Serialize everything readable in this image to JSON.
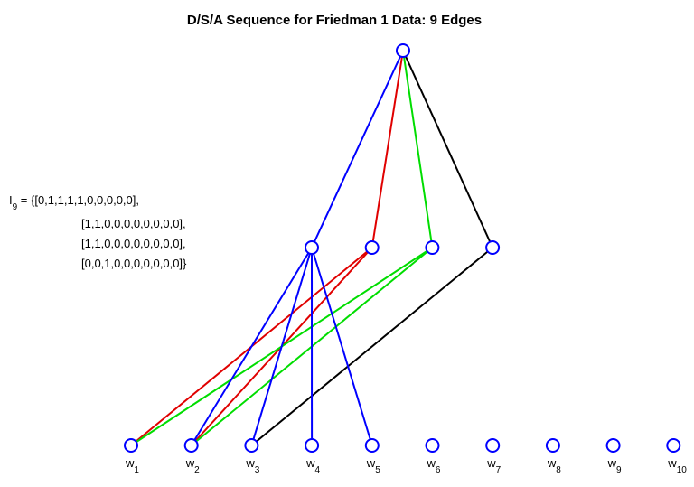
{
  "title": "D/S/A Sequence for Friedman 1 Data: 9 Edges",
  "annotation": {
    "symbol": "I",
    "sub": "9",
    "first": " = {[0,1,1,1,1,0,0,0,0,0],",
    "lines": [
      "[1,1,0,0,0,0,0,0,0,0],",
      "[1,1,0,0,0,0,0,0,0,0],",
      "[0,0,1,0,0,0,0,0,0,0]}"
    ]
  },
  "node_color": "#0000ff",
  "top_edges": [
    {
      "to": 0,
      "color": "#0000ff"
    },
    {
      "to": 1,
      "color": "#e00000"
    },
    {
      "to": 2,
      "color": "#00dd00"
    },
    {
      "to": 3,
      "color": "#000000"
    }
  ],
  "middle_edges": [
    {
      "from": 1,
      "to": 0,
      "color": "#e00000"
    },
    {
      "from": 1,
      "to": 1,
      "color": "#e00000"
    },
    {
      "from": 2,
      "to": 0,
      "color": "#00dd00"
    },
    {
      "from": 2,
      "to": 1,
      "color": "#00dd00"
    },
    {
      "from": 3,
      "to": 2,
      "color": "#000000"
    },
    {
      "from": 0,
      "to": 1,
      "color": "#0000ff"
    },
    {
      "from": 0,
      "to": 2,
      "color": "#0000ff"
    },
    {
      "from": 0,
      "to": 3,
      "color": "#0000ff"
    },
    {
      "from": 0,
      "to": 4,
      "color": "#0000ff"
    }
  ],
  "middle_count": 4,
  "leaves": [
    {
      "base": "w",
      "sub": "1"
    },
    {
      "base": "w",
      "sub": "2"
    },
    {
      "base": "w",
      "sub": "3"
    },
    {
      "base": "w",
      "sub": "4"
    },
    {
      "base": "w",
      "sub": "5"
    },
    {
      "base": "w",
      "sub": "6"
    },
    {
      "base": "w",
      "sub": "7"
    },
    {
      "base": "w",
      "sub": "8"
    },
    {
      "base": "w",
      "sub": "9"
    },
    {
      "base": "w",
      "sub": "10"
    }
  ]
}
